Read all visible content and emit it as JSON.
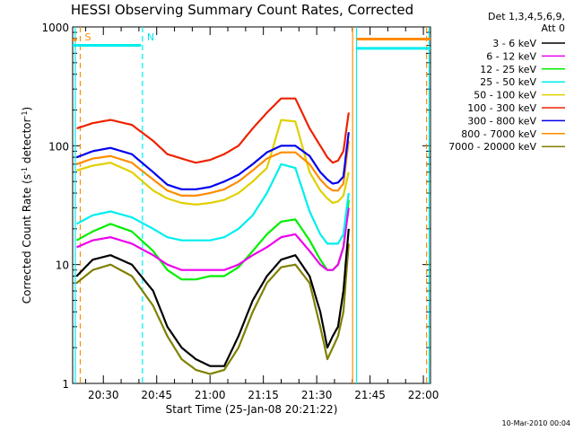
{
  "chart_data": {
    "type": "line",
    "title": "HESSI Observing Summary Count Rates, Corrected",
    "xlabel": "Start Time (25-Jan-08 20:21:22)",
    "ylabel_main": "Corrected Count Rate (s",
    "ylabel_sup1": "-1",
    "ylabel_mid": " detector",
    "ylabel_sup2": "-1",
    "ylabel_end": ")",
    "y_scale": "log",
    "ylim": [
      1,
      1000
    ],
    "xlim_min": [
      21.36,
      122.0
    ],
    "y_ticks": [
      {
        "v": 1,
        "l": "1"
      },
      {
        "v": 10,
        "l": "10"
      },
      {
        "v": 100,
        "l": "100"
      },
      {
        "v": 1000,
        "l": "1000"
      }
    ],
    "x_ticks": [
      {
        "v": 30,
        "l": "20:30"
      },
      {
        "v": 45,
        "l": "20:45"
      },
      {
        "v": 60,
        "l": "21:00"
      },
      {
        "v": 75,
        "l": "21:15"
      },
      {
        "v": 90,
        "l": "21:30"
      },
      {
        "v": 105,
        "l": "21:45"
      },
      {
        "v": 120,
        "l": "22:00"
      }
    ],
    "legend_header": [
      "Det 1,3,4,5,6,9,",
      "Att 0"
    ],
    "timestamp": "10-Mar-2010 00:04",
    "markers": [
      {
        "label": "S",
        "x": 23.5,
        "color": "#ff8c00"
      },
      {
        "label": "N",
        "x": 41.0,
        "color": "#00e5ee"
      }
    ],
    "series": [
      {
        "name": "3 - 6 keV",
        "color": "#000000",
        "x": [
          22.5,
          27,
          32,
          38,
          44,
          48,
          52,
          56,
          60,
          64,
          68,
          72,
          76,
          80,
          84,
          88,
          91,
          93,
          94.5,
          96,
          97.5,
          99
        ],
        "values": [
          8,
          11,
          12,
          10,
          6,
          3,
          2,
          1.6,
          1.4,
          1.4,
          2.5,
          5,
          8,
          11,
          12,
          8,
          4,
          2,
          2.5,
          3,
          6,
          20
        ]
      },
      {
        "name": "6 - 12 keV",
        "color": "#ee00ee",
        "x": [
          22.5,
          27,
          32,
          38,
          44,
          48,
          52,
          56,
          60,
          64,
          68,
          72,
          76,
          80,
          84,
          88,
          91,
          93,
          94.5,
          96,
          97.5,
          99
        ],
        "values": [
          14,
          16,
          17,
          15,
          12,
          10,
          9,
          9,
          9,
          9,
          10,
          12,
          14,
          17,
          18,
          13,
          10,
          9,
          9,
          10,
          14,
          30
        ]
      },
      {
        "name": "12 - 25 keV",
        "color": "#00ee00",
        "x": [
          22.5,
          27,
          32,
          38,
          44,
          48,
          52,
          56,
          60,
          64,
          68,
          72,
          76,
          80,
          84,
          88,
          91,
          93,
          94.5,
          96,
          97.5,
          99
        ],
        "values": [
          16,
          19,
          22,
          19,
          13,
          9,
          7.5,
          7.5,
          8,
          8,
          9.5,
          13,
          18,
          23,
          24,
          16,
          11,
          9,
          9,
          10,
          14,
          35
        ]
      },
      {
        "name": "25 - 50 keV",
        "color": "#00eeee",
        "x": [
          22.5,
          27,
          32,
          38,
          44,
          48,
          52,
          56,
          60,
          64,
          68,
          72,
          76,
          80,
          84,
          88,
          91,
          93,
          94.5,
          96,
          97.5,
          99
        ],
        "values": [
          22,
          26,
          28,
          25,
          20,
          17,
          16,
          16,
          16,
          17,
          20,
          26,
          40,
          70,
          65,
          28,
          18,
          15,
          15,
          15,
          18,
          40
        ]
      },
      {
        "name": "50 - 100 keV",
        "color": "#e0d000",
        "x": [
          22.5,
          27,
          32,
          38,
          44,
          48,
          52,
          56,
          60,
          64,
          68,
          72,
          76,
          80,
          84,
          88,
          91,
          93,
          94.5,
          96,
          97.5,
          99
        ],
        "values": [
          62,
          68,
          72,
          60,
          42,
          36,
          33,
          32,
          33,
          35,
          40,
          50,
          65,
          165,
          160,
          60,
          42,
          36,
          33,
          34,
          38,
          60
        ]
      },
      {
        "name": "100 - 300 keV",
        "color": "#ee2200",
        "x": [
          22.5,
          27,
          32,
          38,
          44,
          48,
          52,
          56,
          60,
          64,
          68,
          72,
          76,
          80,
          84,
          88,
          91,
          93,
          94.5,
          96,
          97.5,
          99
        ],
        "values": [
          140,
          155,
          165,
          150,
          110,
          85,
          78,
          72,
          76,
          85,
          100,
          140,
          190,
          250,
          250,
          140,
          100,
          80,
          72,
          75,
          90,
          190
        ]
      },
      {
        "name": "300 - 800 keV",
        "color": "#0000ee",
        "x": [
          22.5,
          27,
          32,
          38,
          44,
          48,
          52,
          56,
          60,
          64,
          68,
          72,
          76,
          80,
          84,
          88,
          91,
          93,
          94.5,
          96,
          97.5,
          99
        ],
        "values": [
          80,
          90,
          96,
          85,
          60,
          47,
          43,
          43,
          45,
          50,
          57,
          70,
          88,
          100,
          100,
          82,
          60,
          52,
          48,
          49,
          55,
          130
        ]
      },
      {
        "name": "800 - 7000 keV",
        "color": "#ff8c00",
        "x": [
          22.5,
          27,
          32,
          38,
          44,
          48,
          52,
          56,
          60,
          64,
          68,
          72,
          76,
          80,
          84,
          88,
          91,
          93,
          94.5,
          96,
          97.5,
          99
        ],
        "values": [
          70,
          78,
          82,
          72,
          52,
          42,
          38,
          38,
          40,
          43,
          50,
          62,
          78,
          88,
          88,
          70,
          52,
          45,
          42,
          42,
          48,
          110
        ]
      },
      {
        "name": "7000 - 20000 keV",
        "color": "#808000",
        "x": [
          22.5,
          27,
          32,
          38,
          44,
          48,
          52,
          56,
          60,
          64,
          68,
          72,
          76,
          80,
          84,
          88,
          91,
          93,
          94.5,
          96,
          97.5,
          99
        ],
        "values": [
          7,
          9,
          10,
          8,
          4.5,
          2.5,
          1.6,
          1.3,
          1.2,
          1.3,
          2,
          4,
          7,
          9.5,
          10,
          7,
          3,
          1.6,
          2,
          2.5,
          4,
          15
        ]
      }
    ],
    "flat_segments": [
      {
        "color": "#00eeee",
        "x": [
          21.36,
          40.6
        ],
        "y": 700
      },
      {
        "color": "#ff8c00",
        "x": [
          21.36,
          22.5
        ],
        "y": 780
      },
      {
        "color": "#00eeee",
        "x": [
          101.2,
          122.0
        ],
        "y": 660
      },
      {
        "color": "#ff8c00",
        "x": [
          101.2,
          122.0
        ],
        "y": 790
      }
    ],
    "verticals": [
      {
        "x": 22.1,
        "color": "#00eeee",
        "dash": false
      },
      {
        "x": 23.5,
        "color": "#ff8c00",
        "dash": true
      },
      {
        "x": 41.0,
        "color": "#00eeee",
        "dash": true
      },
      {
        "x": 100.1,
        "color": "#ff8c00",
        "dash": false
      },
      {
        "x": 101.2,
        "color": "#00eeee",
        "dash": false
      },
      {
        "x": 120.9,
        "color": "#ff8c00",
        "dash": true
      },
      {
        "x": 121.6,
        "color": "#00eeee",
        "dash": false
      }
    ]
  }
}
